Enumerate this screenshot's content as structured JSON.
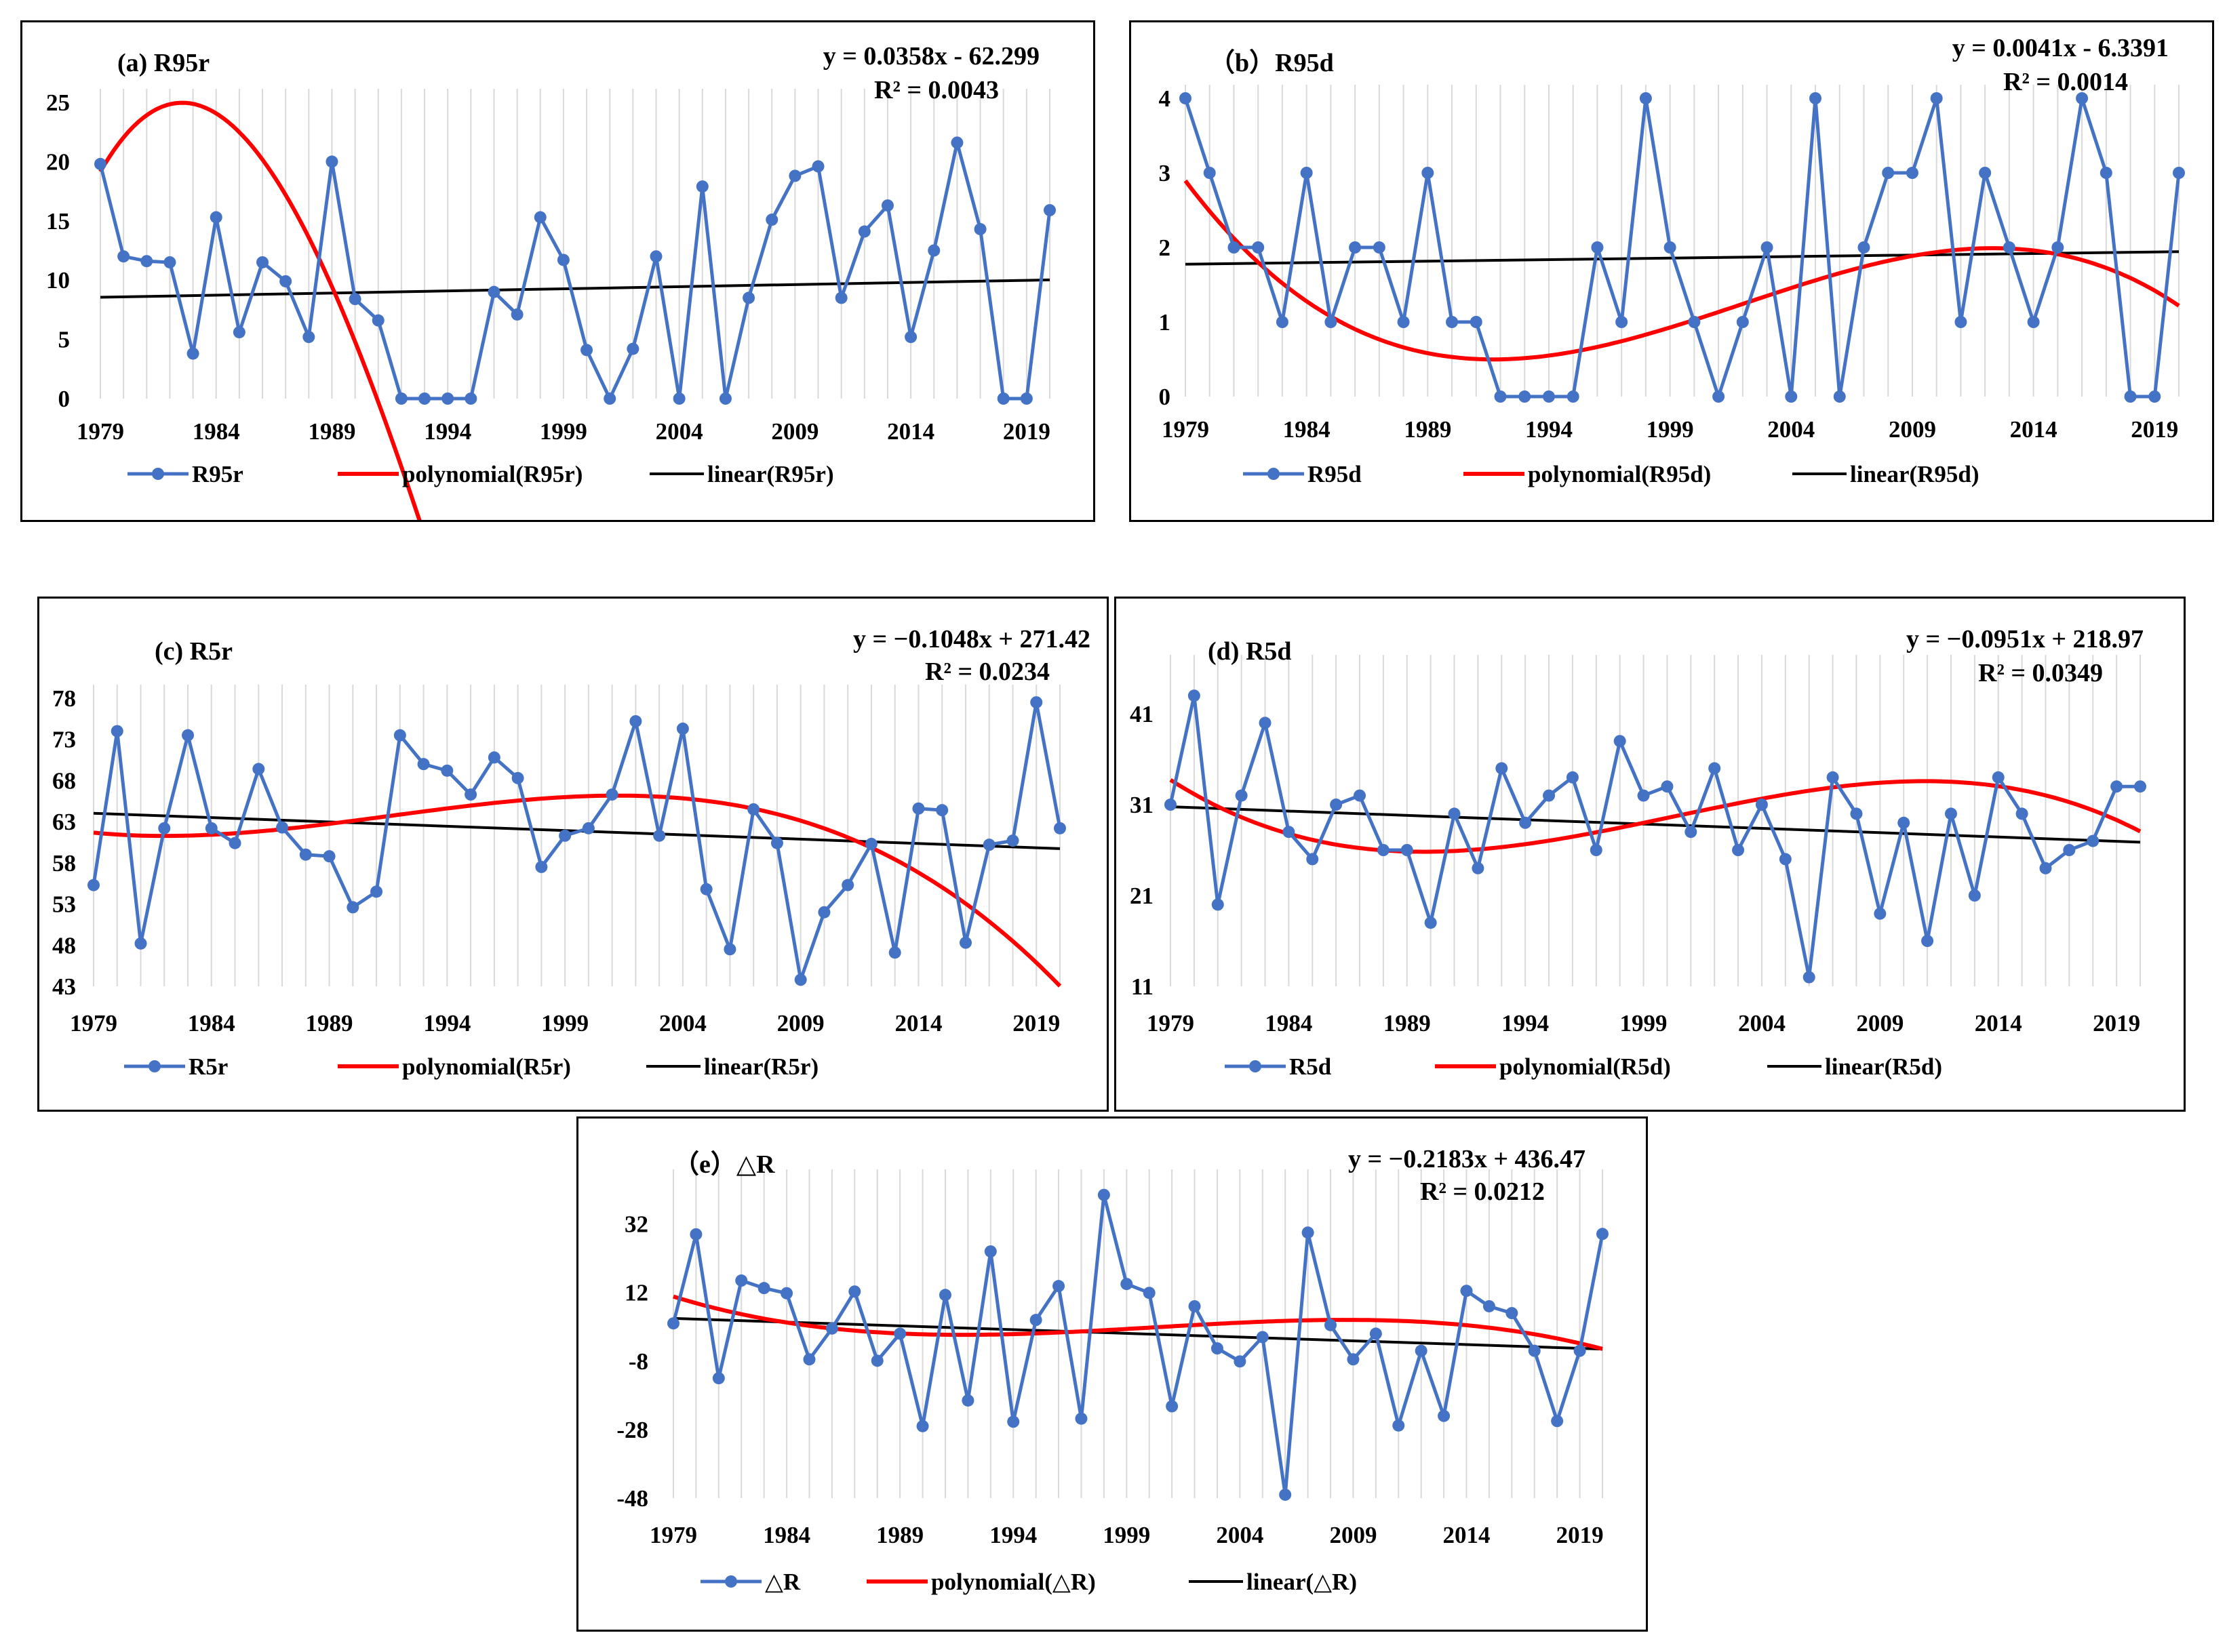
{
  "colors": {
    "series": "#4472C4",
    "poly": "#FF0000",
    "linear": "#000000"
  },
  "x_ticks": [
    "1979",
    "1984",
    "1989",
    "1994",
    "1999",
    "2004",
    "2009",
    "2014",
    "2019"
  ],
  "chart_data": [
    {
      "id": "a",
      "type": "line",
      "title": "(a) R95r",
      "equation": "y = 0.0358x - 62.299",
      "r2": "R² = 0.0043",
      "ylim": [
        0,
        25
      ],
      "yticks": [
        "0",
        "5",
        "10",
        "15",
        "20",
        "25"
      ],
      "ytick_values": [
        0,
        5,
        10,
        15,
        20,
        25
      ],
      "x_start": 1979,
      "values": [
        19.8,
        12,
        11.6,
        11.5,
        3.8,
        15.3,
        5.6,
        11.5,
        9.9,
        5.2,
        20,
        8.4,
        6.6,
        0,
        0,
        0,
        0,
        9,
        7.1,
        15.3,
        11.7,
        4.1,
        0,
        4.2,
        12,
        0,
        17.9,
        0,
        8.5,
        15.1,
        18.8,
        19.6,
        8.5,
        14.1,
        16.3,
        5.2,
        12.5,
        21.6,
        14.3,
        0,
        0,
        15.9
      ],
      "poly": [
        15.2,
        4.5,
        -0.56,
        0.0094
      ],
      "linear": [
        0.0358,
        -62.299
      ],
      "legend": [
        "R95r",
        "polynomial(R95r)",
        "linear(R95r)"
      ]
    },
    {
      "id": "b",
      "type": "line",
      "title": "（b）R95d",
      "equation": "y = 0.0041x - 6.3391",
      "r2": "R² = 0.0014",
      "ylim": [
        0,
        4
      ],
      "yticks": [
        "0",
        "1",
        "2",
        "3",
        "4"
      ],
      "ytick_values": [
        0,
        1,
        2,
        3,
        4
      ],
      "x_start": 1979,
      "values": [
        4,
        3,
        2,
        2,
        1,
        3,
        1,
        2,
        2,
        1,
        3,
        1,
        1,
        0,
        0,
        0,
        0,
        2,
        1,
        4,
        2,
        1,
        0,
        1,
        2,
        0,
        4,
        0,
        2,
        3,
        3,
        4,
        1,
        3,
        2,
        1,
        2,
        4,
        3,
        0,
        0,
        3
      ],
      "poly": [
        3.35,
        -0.48,
        0.0245,
        -0.00034
      ],
      "linear": [
        0.0041,
        -6.3391
      ],
      "legend": [
        "R95d",
        "polynomial(R95d)",
        "linear(R95d)"
      ]
    },
    {
      "id": "c",
      "type": "line",
      "title": "(c) R5r",
      "equation": "y = −0.1048x + 271.42",
      "r2": "R² = 0.0234",
      "ylim": [
        43,
        78
      ],
      "yticks": [
        "43",
        "48",
        "53",
        "58",
        "63",
        "68",
        "73",
        "78"
      ],
      "ytick_values": [
        43,
        48,
        53,
        58,
        63,
        68,
        73,
        78
      ],
      "x_start": 1979,
      "values": [
        55.3,
        74,
        48.2,
        62.2,
        73.5,
        62.2,
        60.4,
        69.4,
        62.3,
        59,
        58.8,
        52.6,
        54.5,
        73.5,
        70,
        69.2,
        66.3,
        70.8,
        68.3,
        57.5,
        61.3,
        62.2,
        66.3,
        75.2,
        61.3,
        74.3,
        54.8,
        47.5,
        64.5,
        60.4,
        43.8,
        52,
        55.3,
        60.3,
        47.1,
        64.6,
        64.4,
        48.3,
        60.2,
        60.7,
        77.5,
        62.2
      ],
      "poly": [
        62,
        -0.386,
        0.0564,
        -0.00138
      ],
      "linear": [
        -0.1048,
        271.42
      ],
      "legend": [
        "R5r",
        "polynomial(R5r)",
        "linear(R5r)"
      ]
    },
    {
      "id": "d",
      "type": "line",
      "title": "(d) R5d",
      "equation": "y = −0.0951x + 218.97",
      "r2": "R² = 0.0349",
      "ylim": [
        11,
        46
      ],
      "yticks": [
        "11",
        "21",
        "31",
        "41"
      ],
      "ytick_values": [
        11,
        21,
        31,
        41
      ],
      "x_start": 1979,
      "values": [
        31,
        43,
        20,
        32,
        40,
        28,
        25,
        31,
        32,
        26,
        26,
        18,
        30,
        24,
        35,
        29,
        32,
        34,
        26,
        38,
        32,
        33,
        28,
        35,
        26,
        31,
        25,
        12,
        34,
        30,
        19,
        29,
        16,
        30,
        21,
        34,
        30,
        24,
        26,
        27,
        33,
        33
      ],
      "poly": [
        35.5,
        -1.88,
        0.109,
        -0.00163
      ],
      "linear": [
        -0.0951,
        218.97
      ],
      "legend": [
        "R5d",
        "polynomial(R5d)",
        "linear(R5d)"
      ]
    },
    {
      "id": "e",
      "type": "line",
      "title": "（e）△R",
      "equation": "y = −0.2183x + 436.47",
      "r2": "R² = 0.0212",
      "ylim": [
        -48,
        44
      ],
      "yticks": [
        "-48",
        "-28",
        "-8",
        "12",
        "32"
      ],
      "ytick_values": [
        -48,
        -28,
        -8,
        12,
        32
      ],
      "x_start": 1979,
      "values": [
        3,
        29,
        -13,
        15.5,
        13.3,
        11.8,
        -7.5,
        1.5,
        12.3,
        -7.9,
        0,
        -27,
        11.3,
        -19.5,
        24,
        -25.7,
        4,
        13.9,
        -24.8,
        40.5,
        14.5,
        11.9,
        -21.2,
        8,
        -4.3,
        -8.1,
        -1,
        -47,
        29.5,
        2.5,
        -7.5,
        0,
        -26.8,
        -5,
        -24,
        12.5,
        8,
        6,
        -5,
        -25.5,
        -5,
        29.1
      ],
      "poly": [
        13,
        -2.28,
        0.12,
        -0.0018
      ],
      "linear": [
        -0.2183,
        436.47
      ],
      "legend": [
        "△R",
        "polynomial(△R)",
        "linear(△R)"
      ]
    }
  ]
}
